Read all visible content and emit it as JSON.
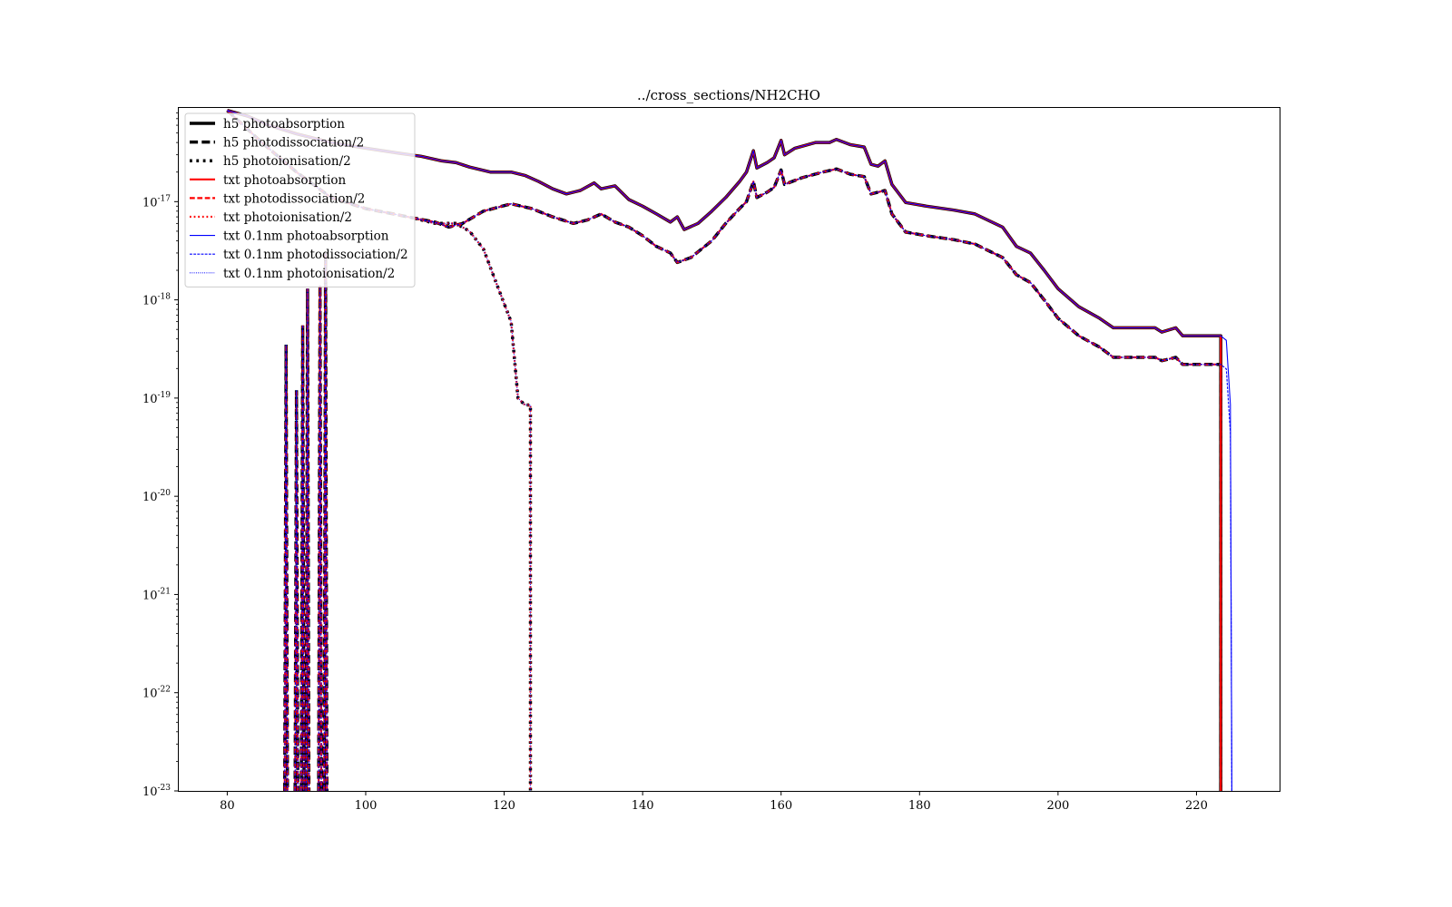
{
  "chart_data": {
    "type": "line",
    "title": "../cross_sections/NH2CHO",
    "xlabel": "",
    "ylabel": "",
    "xlim": [
      73,
      232
    ],
    "ylim": [
      1e-23,
      9e-17
    ],
    "yscale": "log",
    "x_ticks": [
      80,
      100,
      120,
      140,
      160,
      180,
      200,
      220
    ],
    "y_ticks": [
      {
        "value": 1e-23,
        "base": "10",
        "exp": "-23"
      },
      {
        "value": 1e-22,
        "base": "10",
        "exp": "-22"
      },
      {
        "value": 1e-21,
        "base": "10",
        "exp": "-21"
      },
      {
        "value": 1e-20,
        "base": "10",
        "exp": "-20"
      },
      {
        "value": 1e-19,
        "base": "10",
        "exp": "-19"
      },
      {
        "value": 1e-18,
        "base": "10",
        "exp": "-18"
      },
      {
        "value": 1e-17,
        "base": "10",
        "exp": "-17"
      }
    ],
    "grid": false,
    "legend_position": "upper-left",
    "series": [
      {
        "name": "h5 photoabsorption",
        "color": "#000000",
        "dash": "solid",
        "width": 3.5,
        "curve": "abs"
      },
      {
        "name": "h5 photodissociation/2",
        "color": "#000000",
        "dash": "dashed",
        "width": 3.5,
        "curve": "dis"
      },
      {
        "name": "h5 photoionisation/2",
        "color": "#000000",
        "dash": "dotted",
        "width": 3.5,
        "curve": "ion"
      },
      {
        "name": "txt photoabsorption",
        "color": "#ff0000",
        "dash": "solid",
        "width": 2.2,
        "curve": "abs"
      },
      {
        "name": "txt photodissociation/2",
        "color": "#ff0000",
        "dash": "dashed",
        "width": 2.2,
        "curve": "dis"
      },
      {
        "name": "txt photoionisation/2",
        "color": "#ff0000",
        "dash": "dotted",
        "width": 2.2,
        "curve": "ion"
      },
      {
        "name": "txt 0.1nm photoabsorption",
        "color": "#0000ff",
        "dash": "solid",
        "width": 1.1,
        "curve": "abs"
      },
      {
        "name": "txt 0.1nm photodissociation/2",
        "color": "#0000ff",
        "dash": "dashed",
        "width": 1.1,
        "curve": "dis"
      },
      {
        "name": "txt 0.1nm photoionisation/2",
        "color": "#0000ff",
        "dash": "dotted",
        "width": 1.1,
        "curve": "ion"
      }
    ],
    "curves": {
      "abs": [
        [
          80,
          8.5e-17
        ],
        [
          83,
          7.4e-17
        ],
        [
          86,
          6e-17
        ],
        [
          90,
          4.9e-17
        ],
        [
          95,
          4e-17
        ],
        [
          100,
          3.5e-17
        ],
        [
          105,
          3.1e-17
        ],
        [
          108,
          2.9e-17
        ],
        [
          111,
          2.6e-17
        ],
        [
          113,
          2.5e-17
        ],
        [
          115,
          2.25e-17
        ],
        [
          118,
          2e-17
        ],
        [
          121,
          2e-17
        ],
        [
          123,
          1.85e-17
        ],
        [
          125,
          1.6e-17
        ],
        [
          127,
          1.35e-17
        ],
        [
          129,
          1.2e-17
        ],
        [
          131,
          1.3e-17
        ],
        [
          133,
          1.55e-17
        ],
        [
          134,
          1.35e-17
        ],
        [
          136,
          1.45e-17
        ],
        [
          138,
          1.05e-17
        ],
        [
          140,
          9e-18
        ],
        [
          142,
          7.5e-18
        ],
        [
          144,
          6.2e-18
        ],
        [
          145,
          7e-18
        ],
        [
          146,
          5.2e-18
        ],
        [
          148,
          6e-18
        ],
        [
          150,
          8e-18
        ],
        [
          152,
          1.1e-17
        ],
        [
          154,
          1.6e-17
        ],
        [
          155,
          2e-17
        ],
        [
          156,
          3.3e-17
        ],
        [
          156.5,
          2.2e-17
        ],
        [
          158,
          2.5e-17
        ],
        [
          159,
          2.8e-17
        ],
        [
          160,
          4.2e-17
        ],
        [
          160.5,
          3e-17
        ],
        [
          162,
          3.5e-17
        ],
        [
          165,
          4e-17
        ],
        [
          167,
          4e-17
        ],
        [
          168,
          4.3e-17
        ],
        [
          170,
          3.8e-17
        ],
        [
          172,
          3.6e-17
        ],
        [
          173,
          2.4e-17
        ],
        [
          174,
          2.3e-17
        ],
        [
          175,
          2.6e-17
        ],
        [
          176,
          1.5e-17
        ],
        [
          178,
          9.8e-18
        ],
        [
          181,
          9e-18
        ],
        [
          185,
          8.2e-18
        ],
        [
          188,
          7.5e-18
        ],
        [
          192,
          5.5e-18
        ],
        [
          194,
          3.5e-18
        ],
        [
          196,
          3e-18
        ],
        [
          198,
          2e-18
        ],
        [
          200,
          1.3e-18
        ],
        [
          203,
          8.5e-19
        ],
        [
          206,
          6.5e-19
        ],
        [
          208,
          5.2e-19
        ],
        [
          212,
          5.2e-19
        ],
        [
          214,
          5.2e-19
        ],
        [
          215,
          4.7e-19
        ],
        [
          217,
          5.2e-19
        ],
        [
          218,
          4.3e-19
        ],
        [
          223.5,
          4.3e-19
        ]
      ],
      "dis": [
        [
          80,
          8.5e-17
        ],
        [
          85,
          4e-17
        ],
        [
          90,
          2e-17
        ],
        [
          95,
          1.1e-17
        ],
        [
          100,
          8.5e-18
        ],
        [
          104,
          7.5e-18
        ],
        [
          107,
          6.8e-18
        ],
        [
          110,
          6.2e-18
        ],
        [
          112,
          5.5e-18
        ],
        [
          114,
          6e-18
        ],
        [
          117,
          8e-18
        ],
        [
          121,
          9.5e-18
        ],
        [
          124,
          8.5e-18
        ],
        [
          127,
          7e-18
        ],
        [
          130,
          6e-18
        ],
        [
          132,
          6.5e-18
        ],
        [
          134,
          7.5e-18
        ],
        [
          136,
          6.2e-18
        ],
        [
          138,
          5.5e-18
        ],
        [
          140,
          4.5e-18
        ],
        [
          142,
          3.5e-18
        ],
        [
          144,
          3e-18
        ],
        [
          145,
          2.4e-18
        ],
        [
          147,
          2.7e-18
        ],
        [
          150,
          4e-18
        ],
        [
          152,
          6e-18
        ],
        [
          154,
          8.5e-18
        ],
        [
          155,
          1e-17
        ],
        [
          156,
          1.6e-17
        ],
        [
          156.5,
          1.1e-17
        ],
        [
          158,
          1.25e-17
        ],
        [
          159,
          1.4e-17
        ],
        [
          160,
          2.1e-17
        ],
        [
          160.5,
          1.5e-17
        ],
        [
          163,
          1.75e-17
        ],
        [
          166,
          2e-17
        ],
        [
          168,
          2.15e-17
        ],
        [
          170,
          1.9e-17
        ],
        [
          172,
          1.8e-17
        ],
        [
          173,
          1.2e-17
        ],
        [
          175,
          1.3e-17
        ],
        [
          176,
          7.5e-18
        ],
        [
          178,
          4.9e-18
        ],
        [
          181,
          4.5e-18
        ],
        [
          185,
          4.1e-18
        ],
        [
          188,
          3.7e-18
        ],
        [
          192,
          2.7e-18
        ],
        [
          194,
          1.8e-18
        ],
        [
          196,
          1.5e-18
        ],
        [
          198,
          1e-18
        ],
        [
          200,
          6.5e-19
        ],
        [
          203,
          4.3e-19
        ],
        [
          206,
          3.3e-19
        ],
        [
          208,
          2.6e-19
        ],
        [
          214,
          2.6e-19
        ],
        [
          215,
          2.4e-19
        ],
        [
          217,
          2.6e-19
        ],
        [
          218,
          2.2e-19
        ],
        [
          223.5,
          2.2e-19
        ]
      ],
      "ion": [
        [
          107,
          6.8e-18
        ],
        [
          110,
          6e-18
        ],
        [
          113,
          6e-18
        ],
        [
          115,
          5e-18
        ],
        [
          117,
          3.3e-18
        ],
        [
          119,
          1.4e-18
        ],
        [
          121,
          6e-19
        ],
        [
          122,
          1e-19
        ],
        [
          123,
          8.5e-20
        ],
        [
          123.8,
          8.5e-20
        ],
        [
          123.8,
          1e-23
        ]
      ]
    }
  }
}
